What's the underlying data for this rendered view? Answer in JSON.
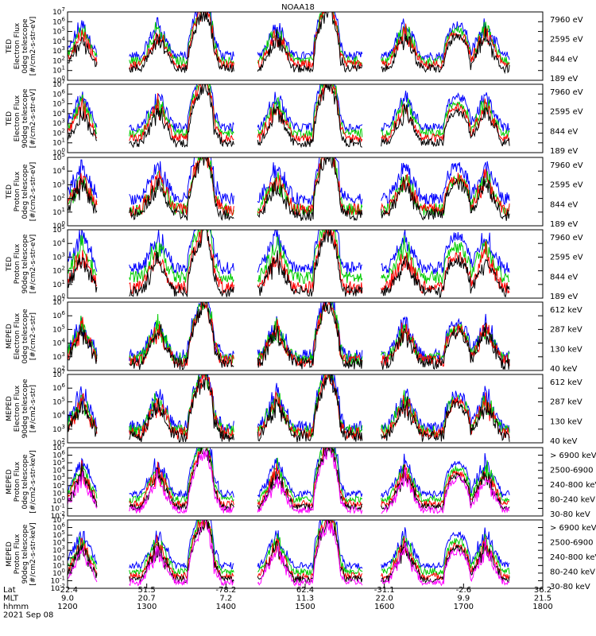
{
  "title": "NOAA18",
  "chart_data": {
    "type": "line",
    "title": "NOAA18",
    "date_label": "2021 Sep 08",
    "x_rows": [
      {
        "label": "Lat",
        "values": [
          "-22.4",
          "51.5",
          "-78.2",
          "62.4",
          "-31.1",
          "-2.6",
          "36.2"
        ]
      },
      {
        "label": "MLT",
        "values": [
          "9.0",
          "20.7",
          "7.2",
          "11.3",
          "22.0",
          "9.9",
          "21.5"
        ]
      },
      {
        "label": "hhmm",
        "values": [
          "1200",
          "1300",
          "1400",
          "1500",
          "1600",
          "1700",
          "1800"
        ]
      }
    ],
    "x_range": [
      "1200",
      "1800"
    ],
    "panels": [
      {
        "ylabel": [
          "TED",
          "Electron Flux",
          "0deg telescope",
          "[#/cm2-s-str-eV]"
        ],
        "ylim_exp": [
          0,
          7
        ],
        "series": [
          {
            "name": "7960 eV",
            "color": "#000000",
            "base": 1.2
          },
          {
            "name": "2595 eV",
            "color": "#ff0000",
            "base": 1.6
          },
          {
            "name": "844 eV",
            "color": "#00cc00",
            "base": 2.0
          },
          {
            "name": "189 eV",
            "color": "#0000ff",
            "base": 2.5
          }
        ]
      },
      {
        "ylabel": [
          "TED",
          "Electron Flux",
          "90deg telescope",
          "[#/cm2-s-str-eV]"
        ],
        "ylim_exp": [
          0,
          7
        ],
        "series": [
          {
            "name": "7960 eV",
            "color": "#000000",
            "base": 1.0
          },
          {
            "name": "2595 eV",
            "color": "#ff0000",
            "base": 1.5
          },
          {
            "name": "844 eV",
            "color": "#00cc00",
            "base": 2.0
          },
          {
            "name": "189 eV",
            "color": "#0000ff",
            "base": 2.6
          }
        ]
      },
      {
        "ylabel": [
          "TED",
          "Proton Flux",
          "0deg telescope",
          "[#/cm2-s-str-eV]"
        ],
        "ylim_exp": [
          0,
          5
        ],
        "series": [
          {
            "name": "7960 eV",
            "color": "#000000",
            "base": 0.8
          },
          {
            "name": "2595 eV",
            "color": "#ff0000",
            "base": 1.2
          },
          {
            "name": "844 eV",
            "color": "#00cc00",
            "base": 1.2
          },
          {
            "name": "189 eV",
            "color": "#0000ff",
            "base": 2.0
          }
        ]
      },
      {
        "ylabel": [
          "TED",
          "Proton Flux",
          "90deg telescope",
          "[#/cm2-s-str-eV]"
        ],
        "ylim_exp": [
          0,
          5
        ],
        "series": [
          {
            "name": "7960 eV",
            "color": "#000000",
            "base": 0.5
          },
          {
            "name": "2595 eV",
            "color": "#ff0000",
            "base": 0.8
          },
          {
            "name": "844 eV",
            "color": "#00cc00",
            "base": 1.5
          },
          {
            "name": "189 eV",
            "color": "#0000ff",
            "base": 2.2
          }
        ]
      },
      {
        "ylabel": [
          "MEPED",
          "Electron Flux",
          "0deg telescope",
          "[#/cm2-s-str]"
        ],
        "ylim_exp": [
          2,
          7
        ],
        "series": [
          {
            "name": "612 keV",
            "color": "#000000",
            "base": 2.5
          },
          {
            "name": "287 keV",
            "color": "#ff0000",
            "base": 2.7
          },
          {
            "name": "130 keV",
            "color": "#00cc00",
            "base": 2.9
          },
          {
            "name": "40 keV",
            "color": "#0000ff",
            "base": 3.1
          }
        ]
      },
      {
        "ylabel": [
          "MEPED",
          "Electron Flux",
          "90deg telescope",
          "[#/cm2-s-str]"
        ],
        "ylim_exp": [
          2,
          7
        ],
        "series": [
          {
            "name": "612 keV",
            "color": "#000000",
            "base": 2.5
          },
          {
            "name": "287 keV",
            "color": "#ff0000",
            "base": 2.7
          },
          {
            "name": "130 keV",
            "color": "#00cc00",
            "base": 2.9
          },
          {
            "name": "40 keV",
            "color": "#0000ff",
            "base": 3.2
          }
        ]
      },
      {
        "ylabel": [
          "MEPED",
          "Proton Flux",
          "0deg telescope",
          "[#/cm2-s-str-keV]"
        ],
        "ylim_exp": [
          -2,
          7
        ],
        "series": [
          {
            "name": "> 6900 keV",
            "color": "#ff00ff",
            "base": -1.2
          },
          {
            "name": "2500-6900",
            "color": "#000000",
            "base": -0.8
          },
          {
            "name": "240-800 keV",
            "color": "#ff0000",
            "base": -0.4
          },
          {
            "name": "80-240 keV",
            "color": "#00cc00",
            "base": 0.2
          },
          {
            "name": "30-80 keV",
            "color": "#0000ff",
            "base": 0.9
          }
        ]
      },
      {
        "ylabel": [
          "MEPED",
          "Proton Flux",
          "90deg telescope",
          "[#/cm2-s-str-keV]"
        ],
        "ylim_exp": [
          -2,
          7
        ],
        "series": [
          {
            "name": "> 6900 keV",
            "color": "#ff00ff",
            "base": -1.2
          },
          {
            "name": "2500-6900",
            "color": "#000000",
            "base": -0.8
          },
          {
            "name": "240-800 keV",
            "color": "#ff0000",
            "base": -0.4
          },
          {
            "name": "80-240 keV",
            "color": "#00cc00",
            "base": 0.2
          },
          {
            "name": "30-80 keV",
            "color": "#0000ff",
            "base": 1.0
          }
        ]
      }
    ]
  }
}
